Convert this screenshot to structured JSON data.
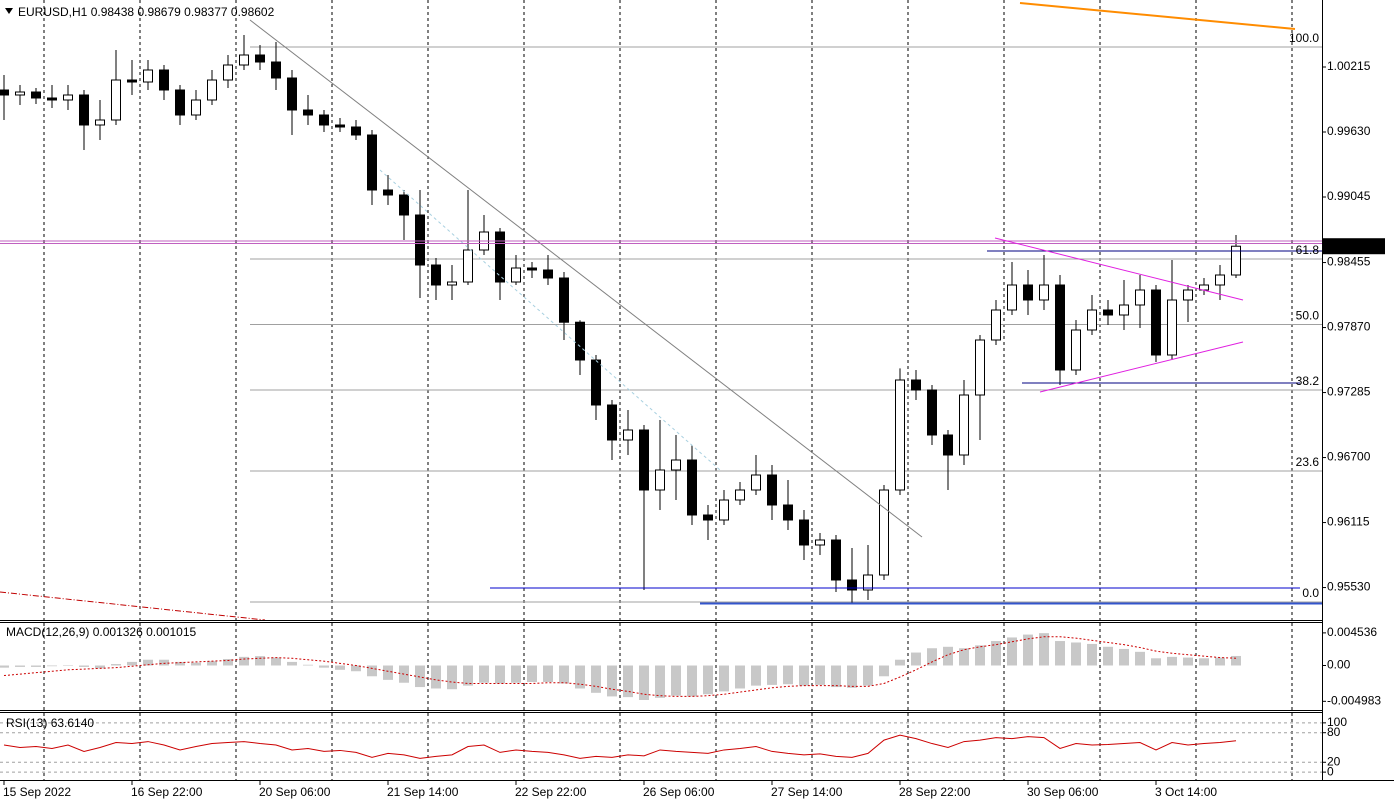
{
  "chart_data": [
    {
      "type": "candlestick",
      "title": "EURUSD,H1",
      "ohlc_header": [
        0.98438,
        0.98679,
        0.98377,
        0.98602
      ],
      "current_price": 0.98602,
      "categories": [
        "15 Sep 2022",
        null,
        null,
        null,
        null,
        null,
        null,
        null,
        "16 Sep 22:00",
        null,
        null,
        null,
        null,
        null,
        null,
        null,
        "20 Sep 06:00",
        null,
        null,
        null,
        null,
        null,
        null,
        null,
        "21 Sep 14:00",
        null,
        null,
        null,
        null,
        null,
        null,
        null,
        "22 Sep 22:00",
        null,
        null,
        null,
        null,
        null,
        null,
        null,
        "26 Sep 06:00",
        null,
        null,
        null,
        null,
        null,
        null,
        null,
        "27 Sep 14:00",
        null,
        null,
        null,
        null,
        null,
        null,
        null,
        "28 Sep 22:00",
        null,
        null,
        null,
        null,
        null,
        null,
        null,
        "30 Sep 06:00",
        null,
        null,
        null,
        null,
        null,
        null,
        null,
        "3 Oct 14:00",
        null,
        null,
        null,
        null,
        null
      ],
      "open": [
        1.00008,
        0.99963,
        0.9999,
        0.99936,
        0.99918,
        0.99963,
        0.99693,
        0.99738,
        1.00098,
        1.0008,
        1.00188,
        1.00008,
        0.99783,
        0.99918,
        1.00098,
        1.00233,
        1.00323,
        1.0026,
        1.00116,
        0.99828,
        0.99783,
        0.99693,
        0.99675,
        0.99603,
        0.99108,
        0.99063,
        0.98883,
        0.98433,
        0.98253,
        0.9828,
        0.98568,
        0.9873,
        0.9828,
        0.98406,
        0.98388,
        0.98316,
        0.97918,
        0.97578,
        0.97173,
        0.96858,
        0.96948,
        0.96408,
        0.96588,
        0.96678,
        0.96183,
        0.96138,
        0.96318,
        0.96408,
        0.96543,
        0.96273,
        0.96138,
        0.95913,
        0.95958,
        0.95598,
        0.95508,
        0.95643,
        0.96408,
        0.97398,
        0.97308,
        0.96903,
        0.96723,
        0.97263,
        0.97758,
        0.98028,
        0.98253,
        0.98118,
        0.98253,
        0.97488,
        0.97848,
        0.98028,
        0.97983,
        0.98073,
        0.98208,
        0.97623,
        0.98118,
        0.98208,
        0.98253,
        0.98343
      ],
      "high": [
        1.00143,
        1.00053,
        1.00026,
        1.00053,
        1.00053,
        1.00008,
        0.99918,
        1.00368,
        1.00278,
        1.00278,
        1.00233,
        1.00053,
        1.00008,
        1.00188,
        1.00323,
        1.00503,
        1.00413,
        1.0044,
        1.00188,
        0.99963,
        0.99828,
        0.99756,
        0.99738,
        0.99648,
        0.99243,
        0.99108,
        0.99108,
        0.98496,
        0.98433,
        0.99108,
        0.98883,
        0.98766,
        0.98523,
        0.9846,
        0.98523,
        0.9837,
        0.97936,
        0.97623,
        0.97218,
        0.97128,
        0.96993,
        0.97038,
        0.96903,
        0.96813,
        0.96273,
        0.96408,
        0.9648,
        0.96723,
        0.96633,
        0.96498,
        0.96228,
        0.96021,
        0.96003,
        0.95886,
        0.95913,
        0.96453,
        0.97503,
        0.97488,
        0.97353,
        0.96948,
        0.97398,
        0.97803,
        0.98118,
        0.9846,
        0.98388,
        0.98523,
        0.98343,
        0.97938,
        0.98163,
        0.98118,
        0.98298,
        0.98343,
        0.98253,
        0.98478,
        0.98253,
        0.98316,
        0.98433,
        0.98703
      ],
      "low": [
        0.99738,
        0.99873,
        0.99882,
        0.99846,
        0.99828,
        0.99468,
        0.99558,
        0.99693,
        0.99963,
        1.00008,
        0.99918,
        0.99693,
        0.99738,
        0.99873,
        1.00026,
        1.00188,
        1.00188,
        1.00008,
        0.99603,
        0.99693,
        0.9963,
        0.9963,
        0.99558,
        0.98973,
        0.98973,
        0.98658,
        0.98136,
        0.98118,
        0.98118,
        0.98253,
        0.98523,
        0.98118,
        0.98253,
        0.98316,
        0.98253,
        0.97758,
        0.97443,
        0.97038,
        0.96678,
        0.96723,
        0.95508,
        0.96228,
        0.96318,
        0.96093,
        0.95958,
        0.96093,
        0.96273,
        0.96363,
        0.96138,
        0.96048,
        0.95778,
        0.95823,
        0.9549,
        0.95391,
        0.95418,
        0.95598,
        0.96363,
        0.97218,
        0.96813,
        0.96408,
        0.96633,
        0.96858,
        0.97713,
        0.97983,
        0.97983,
        0.98028,
        0.97353,
        0.97443,
        0.97803,
        0.97893,
        0.97848,
        0.97866,
        0.9756,
        0.97578,
        0.9792,
        0.98163,
        0.98118,
        0.98316
      ],
      "close": [
        0.99963,
        0.9999,
        0.99936,
        0.99918,
        0.99963,
        0.99693,
        0.99738,
        1.00098,
        1.0008,
        1.00188,
        1.00008,
        0.99783,
        0.99918,
        1.00098,
        1.00233,
        1.00323,
        1.0026,
        1.00116,
        0.99828,
        0.99783,
        0.99693,
        0.99675,
        0.99603,
        0.99108,
        0.99063,
        0.98883,
        0.98433,
        0.98253,
        0.9828,
        0.98568,
        0.9873,
        0.9828,
        0.98406,
        0.98388,
        0.98316,
        0.97918,
        0.97578,
        0.97173,
        0.96858,
        0.96948,
        0.96408,
        0.96588,
        0.96678,
        0.96183,
        0.96138,
        0.96318,
        0.96408,
        0.96543,
        0.96273,
        0.96138,
        0.95913,
        0.95958,
        0.95598,
        0.95508,
        0.95643,
        0.96408,
        0.97398,
        0.97308,
        0.96903,
        0.96723,
        0.97263,
        0.97758,
        0.98028,
        0.98253,
        0.98118,
        0.98253,
        0.97488,
        0.97848,
        0.98028,
        0.97983,
        0.98073,
        0.98208,
        0.97623,
        0.98118,
        0.98208,
        0.98253,
        0.98343,
        0.98602
      ],
      "up_color": "#ffffff",
      "down_color": "#000000",
      "ylim": [
        0.95238,
        1.00818
      ],
      "yticks": [
        1.00215,
        {
          "value": 0.9963,
          "label": "0.99630"
        },
        0.99045,
        0.98455,
        {
          "value": 0.9787,
          "label": "0.97870"
        },
        0.97285,
        {
          "value": 0.967,
          "label": "0.96700"
        },
        0.96115,
        {
          "value": 0.9553,
          "label": "0.95530"
        }
      ],
      "fib_levels": [
        {
          "label": "100.0",
          "value": 1.00395
        },
        {
          "label": "61.8",
          "value": 0.98487
        },
        {
          "label": "50.0",
          "value": 0.97898
        },
        {
          "label": "38.2",
          "value": 0.97308
        },
        {
          "label": "23.6",
          "value": 0.96579
        },
        {
          "label": "0.0",
          "value": 0.954
        }
      ],
      "fib_color": "#a0a0a0"
    },
    {
      "type": "macd",
      "title": "MACD(12,26,9)",
      "header_values": [
        0.001326,
        0.001015
      ],
      "histogram": {
        "color": "#c8c8c8",
        "values": [
          -0.0003,
          -0.0002,
          -0.0002,
          -0.0001,
          0,
          -0.0002,
          -0.0004,
          0.0002,
          0.0005,
          0.0008,
          0.0008,
          0.0005,
          0.0004,
          0.0006,
          0.0009,
          0.0012,
          0.0013,
          0.0011,
          0.0005,
          0.0001,
          -0.0003,
          -0.0006,
          -0.0008,
          -0.0015,
          -0.002,
          -0.0024,
          -0.003,
          -0.0032,
          -0.0033,
          -0.0028,
          -0.0024,
          -0.0025,
          -0.0024,
          -0.0023,
          -0.0023,
          -0.0025,
          -0.0032,
          -0.0038,
          -0.0043,
          -0.0044,
          -0.0048,
          -0.0045,
          -0.0042,
          -0.0043,
          -0.004,
          -0.0036,
          -0.0032,
          -0.0028,
          -0.0027,
          -0.0026,
          -0.0028,
          -0.0027,
          -0.003,
          -0.0031,
          -0.0028,
          -0.0015,
          0.0008,
          0.0018,
          0.0024,
          0.0026,
          0.0024,
          0.0028,
          0.0034,
          0.0039,
          0.0043,
          0.0045,
          0.0034,
          0.0032,
          0.003,
          0.0026,
          0.0023,
          0.0019,
          0.001,
          0.0012,
          0.0011,
          0.001,
          0.0011,
          0.001326
        ]
      },
      "signal": {
        "color": "#cc0000",
        "values": [
          -0.0014,
          -0.0012,
          -0.001,
          -0.0008,
          -0.0006,
          -0.0005,
          -0.0004,
          -0.0003,
          -0.0001,
          0.0001,
          0.0003,
          0.0004,
          0.0005,
          0.0006,
          0.0007,
          0.0009,
          0.001,
          0.0011,
          0.001,
          0.0008,
          0.0006,
          0.0003,
          0,
          -0.0004,
          -0.0008,
          -0.0012,
          -0.0016,
          -0.002,
          -0.0023,
          -0.0025,
          -0.0025,
          -0.0025,
          -0.0025,
          -0.0025,
          -0.0024,
          -0.0024,
          -0.0026,
          -0.0029,
          -0.0033,
          -0.0036,
          -0.004,
          -0.0042,
          -0.0043,
          -0.0043,
          -0.0042,
          -0.004,
          -0.0037,
          -0.0034,
          -0.0031,
          -0.0029,
          -0.0028,
          -0.0028,
          -0.0028,
          -0.0029,
          -0.0029,
          -0.0025,
          -0.0016,
          -0.0006,
          0.0005,
          0.0015,
          0.0022,
          0.0026,
          0.0029,
          0.0033,
          0.0037,
          0.004,
          0.004,
          0.0038,
          0.0035,
          0.0032,
          0.0029,
          0.0025,
          0.002,
          0.0017,
          0.0015,
          0.0013,
          0.0011,
          0.001015
        ]
      },
      "ylim": [
        -0.00619,
        0.00591
      ],
      "yticks": [
        0.004536,
        {
          "value": 0,
          "label": "0.00"
        },
        -0.004983
      ]
    },
    {
      "type": "line",
      "title": "RSI(13)",
      "header_value": {
        "value": 63.614,
        "label": "63.6140"
      },
      "color": "#cc0000",
      "values": [
        55,
        50,
        52,
        48,
        55,
        42,
        50,
        60,
        58,
        62,
        55,
        45,
        52,
        58,
        60,
        62,
        58,
        55,
        45,
        48,
        42,
        44,
        40,
        30,
        38,
        35,
        28,
        32,
        35,
        52,
        55,
        40,
        45,
        42,
        40,
        35,
        28,
        32,
        30,
        35,
        33,
        45,
        42,
        40,
        38,
        45,
        48,
        52,
        42,
        38,
        35,
        37,
        32,
        30,
        38,
        65,
        75,
        68,
        58,
        50,
        62,
        65,
        70,
        68,
        72,
        70,
        48,
        58,
        55,
        56,
        58,
        60,
        45,
        60,
        55,
        58,
        60,
        63.614
      ],
      "ylim": [
        -16,
        120
      ],
      "yticks": [
        0,
        20,
        80,
        100
      ],
      "grid": true
    }
  ]
}
